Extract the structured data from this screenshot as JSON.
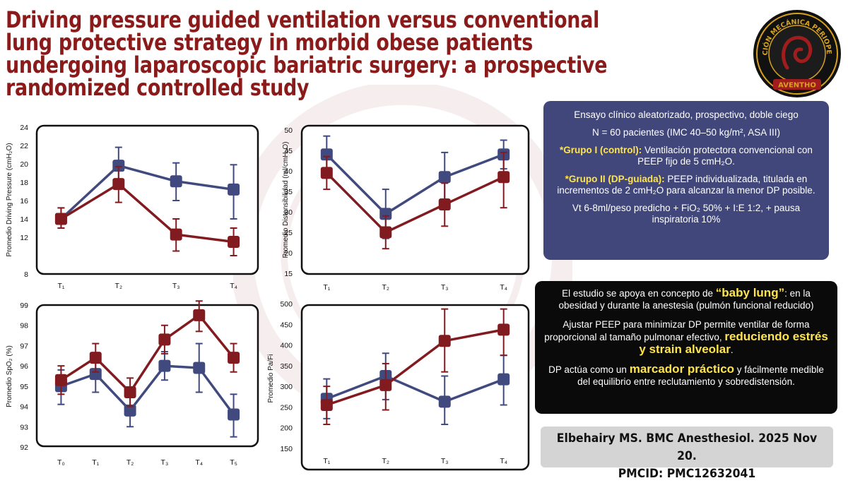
{
  "title": "Driving pressure guided ventilation versus conventional lung protective strategy in morbid obese patients undergoing laparoscopic bariatric surgery: a prospective randomized controlled study",
  "logo": {
    "ring_text": "VENTILACIÓN MECÁNICA PERIOPERATORIA",
    "bottom_text": "AVENTHO"
  },
  "colors": {
    "conventional": "#414a7e",
    "dp_guided": "#821b1f",
    "title": "#8b1a1a",
    "highlight": "#ffe44d",
    "info_box": "#41477a"
  },
  "info_box": {
    "line1": "Ensayo clínico aleatorizado, prospectivo, doble ciego",
    "line2": "N = 60 pacientes (IMC 40–50 kg/m², ASA III)",
    "group1_label": "*Grupo I (control):",
    "group1_text": " Ventilación protectora convencional con PEEP fijo de 5 cmH₂O.",
    "group2_label": "*Grupo II (DP-guiada):",
    "group2_text": " PEEP individualizada, titulada en incrementos de 2 cmH₂O para alcanzar la menor DP posible.",
    "line5": "Vt 6-8ml/peso predicho + FiO₂ 50% + I:E 1:2, + pausa inspiratoria 10%"
  },
  "concept_box": {
    "p1_pre": "El estudio se apoya en concepto de ",
    "p1_hl": "“baby lung”",
    "p1_post": ": en la obesidad y durante la anestesia (pulmón funcional reducido)",
    "p2_pre": "Ajustar PEEP para minimizar DP permite ventilar de forma proporcional al tamaño pulmonar efectivo, ",
    "p2_hl": "reduciendo estrés y strain alveolar",
    "p2_post": ".",
    "p3_pre": "DP actúa como un ",
    "p3_hl": "marcador práctico",
    "p3_post": " y fácilmente medible del equilibrio entre reclutamiento y sobredistensión."
  },
  "citation": {
    "line1": "Elbehairy MS. BMC Anesthesiol. 2025 Nov 20.",
    "line2": "PMCID: PMC12632041"
  },
  "chart_data": [
    {
      "type": "line",
      "ylabel": "Promedio Driving Pressure (cmH₂O)",
      "categories": [
        "T₁",
        "T₂",
        "T₃",
        "T₄"
      ],
      "ylim": [
        8,
        24
      ],
      "yticks": [
        8,
        12,
        14,
        16,
        18,
        20,
        22,
        24
      ],
      "series": [
        {
          "values": [
            14.0,
            19.8,
            18.1,
            17.2
          ],
          "err_low": [
            13.0,
            17.8,
            16.0,
            14.0
          ],
          "err_high": [
            15.2,
            21.8,
            20.1,
            19.9
          ]
        },
        {
          "values": [
            14.0,
            17.8,
            12.3,
            11.5
          ],
          "err_low": [
            13.0,
            15.8,
            10.5,
            10.0
          ],
          "err_high": [
            15.2,
            19.7,
            14.0,
            13.0
          ]
        }
      ]
    },
    {
      "type": "line",
      "ylabel": "Promedio Distensibilidad (ml/cmH₂O)",
      "categories": [
        "T₁",
        "T₂",
        "T₃",
        "T₄"
      ],
      "ylim": [
        15,
        50
      ],
      "yticks": [
        15,
        20,
        25,
        30,
        35,
        40,
        45,
        50
      ],
      "series": [
        {
          "values": [
            44.0,
            29.5,
            38.5,
            44.0
          ],
          "err_low": [
            39.5,
            23.5,
            32.5,
            40.5
          ],
          "err_high": [
            48.5,
            35.5,
            44.5,
            47.5
          ]
        },
        {
          "values": [
            39.5,
            25.0,
            31.8,
            38.5
          ],
          "err_low": [
            35.5,
            21.0,
            26.5,
            31.0
          ],
          "err_high": [
            43.5,
            29.0,
            37.0,
            44.5
          ]
        }
      ]
    },
    {
      "type": "line",
      "ylabel": "Promedio SpO₂ (%)",
      "categories": [
        "T₀",
        "T₁",
        "T₂",
        "T₃",
        "T₄",
        "T₅"
      ],
      "ylim": [
        92,
        99
      ],
      "yticks": [
        92,
        93,
        94,
        95,
        96,
        97,
        98,
        99
      ],
      "series": [
        {
          "values": [
            95.0,
            95.6,
            93.8,
            96.0,
            95.9,
            93.6
          ],
          "err_low": [
            94.1,
            94.7,
            93.0,
            95.3,
            94.7,
            92.5
          ],
          "err_high": [
            95.8,
            96.4,
            94.5,
            96.7,
            97.1,
            94.6
          ]
        },
        {
          "values": [
            95.3,
            96.4,
            94.7,
            97.3,
            98.5,
            96.4
          ],
          "err_low": [
            94.6,
            95.7,
            94.0,
            96.6,
            97.7,
            95.7
          ],
          "err_high": [
            96.0,
            97.1,
            95.4,
            98.0,
            99.2,
            97.1
          ]
        }
      ]
    },
    {
      "type": "line",
      "ylabel": "Promedio Pa/Fi",
      "categories": [
        "T₁",
        "T₂",
        "T₃",
        "T₄"
      ],
      "ylim": [
        150,
        500
      ],
      "yticks": [
        150,
        200,
        250,
        300,
        350,
        400,
        450,
        500
      ],
      "series": [
        {
          "values": [
            270,
            325,
            263,
            317
          ],
          "err_low": [
            222,
            268,
            208,
            255
          ],
          "err_high": [
            318,
            380,
            325,
            375
          ]
        },
        {
          "values": [
            255,
            303,
            410,
            437
          ],
          "err_low": [
            208,
            243,
            335,
            375
          ],
          "err_high": [
            300,
            355,
            487,
            487
          ]
        }
      ]
    }
  ]
}
